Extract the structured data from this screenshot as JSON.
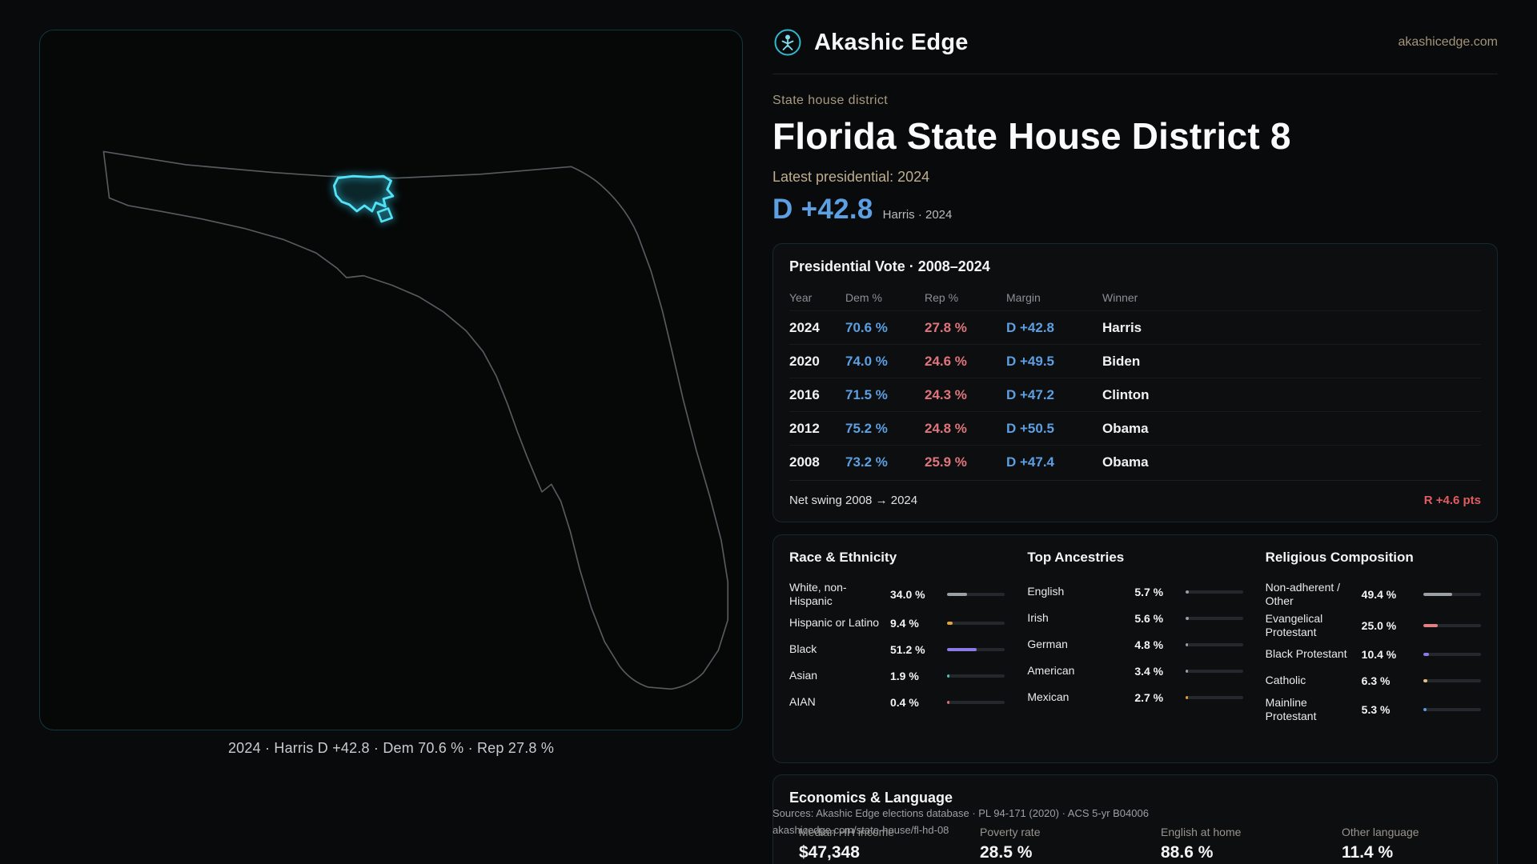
{
  "header": {
    "brand": "Akashic Edge",
    "domain": "akashicedge.com"
  },
  "hero": {
    "eyebrow": "State house district",
    "title": "Florida State House District 8",
    "latest_label": "Latest presidential: 2024",
    "margin_value": "D +42.8",
    "margin_context": "Harris · 2024"
  },
  "map": {
    "caption": "2024 · Harris D +42.8 · Dem 70.6 % · Rep 27.8 %",
    "district_color": "#35d6f2"
  },
  "presidential": {
    "title": "Presidential Vote · 2008–2024",
    "columns": {
      "year": "Year",
      "dem": "Dem %",
      "rep": "Rep %",
      "margin": "Margin",
      "winner": "Winner"
    },
    "rows": [
      {
        "year": "2024",
        "dem": "70.6 %",
        "rep": "27.8 %",
        "margin": "D +42.8",
        "winner": "Harris"
      },
      {
        "year": "2020",
        "dem": "74.0 %",
        "rep": "24.6 %",
        "margin": "D +49.5",
        "winner": "Biden"
      },
      {
        "year": "2016",
        "dem": "71.5 %",
        "rep": "24.3 %",
        "margin": "D +47.2",
        "winner": "Clinton"
      },
      {
        "year": "2012",
        "dem": "75.2 %",
        "rep": "24.8 %",
        "margin": "D +50.5",
        "winner": "Obama"
      },
      {
        "year": "2008",
        "dem": "73.2 %",
        "rep": "25.9 %",
        "margin": "D +47.4",
        "winner": "Obama"
      }
    ],
    "net_swing_label": "Net swing 2008 → 2024",
    "net_swing_value": "R +4.6 pts"
  },
  "race": {
    "title": "Race & Ethnicity",
    "rows": [
      {
        "label": "White, non-Hispanic",
        "value": "34.0 %",
        "pct": 34.0,
        "color": "#9aa0a6"
      },
      {
        "label": "Hispanic or Latino",
        "value": "9.4 %",
        "pct": 9.4,
        "color": "#e2a33c"
      },
      {
        "label": "Black",
        "value": "51.2 %",
        "pct": 51.2,
        "color": "#8b7ae8"
      },
      {
        "label": "Asian",
        "value": "1.9 %",
        "pct": 1.9,
        "color": "#45c4b8"
      },
      {
        "label": "AIAN",
        "value": "0.4 %",
        "pct": 0.4,
        "color": "#e06c75"
      }
    ]
  },
  "ancestries": {
    "title": "Top Ancestries",
    "rows": [
      {
        "label": "English",
        "value": "5.7 %",
        "pct": 5.7,
        "color": "#9aa0a6"
      },
      {
        "label": "Irish",
        "value": "5.6 %",
        "pct": 5.6,
        "color": "#9aa0a6"
      },
      {
        "label": "German",
        "value": "4.8 %",
        "pct": 4.8,
        "color": "#9aa0a6"
      },
      {
        "label": "American",
        "value": "3.4 %",
        "pct": 3.4,
        "color": "#9aa0a6"
      },
      {
        "label": "Mexican",
        "value": "2.7 %",
        "pct": 2.7,
        "color": "#e2a33c"
      }
    ]
  },
  "religion": {
    "title": "Religious Composition",
    "rows": [
      {
        "label": "Non-adherent / Other",
        "value": "49.4 %",
        "pct": 49.4,
        "color": "#9aa0a6"
      },
      {
        "label": "Evangelical Protestant",
        "value": "25.0 %",
        "pct": 25.0,
        "color": "#e08083"
      },
      {
        "label": "Black Protestant",
        "value": "10.4 %",
        "pct": 10.4,
        "color": "#8b7ae8"
      },
      {
        "label": "Catholic",
        "value": "6.3 %",
        "pct": 6.3,
        "color": "#e5c07b"
      },
      {
        "label": "Mainline Protestant",
        "value": "5.3 %",
        "pct": 5.3,
        "color": "#5b9ce0"
      }
    ]
  },
  "economics": {
    "title": "Economics & Language",
    "stats": [
      {
        "label": "Median HH income",
        "value": "$47,348"
      },
      {
        "label": "Poverty rate",
        "value": "28.5 %"
      },
      {
        "label": "English at home",
        "value": "88.6 %"
      },
      {
        "label": "Other language",
        "value": "11.4 %"
      }
    ]
  },
  "footer": {
    "sources": "Sources: Akashic Edge elections database · PL 94-171 (2020) · ACS 5-yr B04006",
    "permalink": "akashicedge.com/state-house/fl-hd-08"
  },
  "colors": {
    "dem": "#5c9fe2",
    "rep": "#e0757c",
    "accent": "#35d6f2",
    "gold": "#bfae8e"
  }
}
